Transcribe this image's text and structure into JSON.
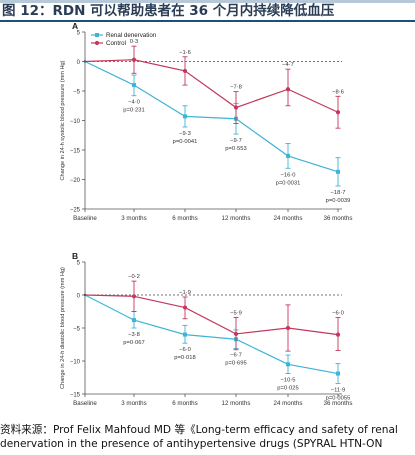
{
  "page": {
    "figure_title": "图 12：RDN 可以帮助患者在 36 个月内持续降低血压",
    "source_line1": "资料来源：Prof Felix Mahfoud MD 等《Long-term efficacy and safety of renal",
    "source_line2": "denervation in the presence of antihypertensive drugs (SPYRAL HTN-ON"
  },
  "colors": {
    "renal_denervation": "#3eb4d6",
    "control": "#c3385c",
    "axis": "#555555",
    "title_text": "#2a3d55",
    "title_rule": "#1e4e79"
  },
  "chart_data": [
    {
      "type": "line",
      "panel": "A",
      "ylabel": "Change in 24-h systolic blood pressure (mm Hg)",
      "xlabel": "",
      "categories": [
        "Baseline",
        "3 months",
        "6 months",
        "12 months",
        "24 months",
        "36 months"
      ],
      "ylim": [
        -25,
        5
      ],
      "yticks": [
        5,
        0,
        -5,
        -10,
        -15,
        -20,
        -25
      ],
      "grid": false,
      "legend": {
        "placement": "top-left",
        "entries": [
          "Renal denervation",
          "Control"
        ]
      },
      "series": [
        {
          "name": "Renal denervation",
          "values": [
            0,
            -4.0,
            -9.3,
            -9.7,
            -16.0,
            -18.7
          ],
          "err_low": [
            0,
            -5.8,
            -11.1,
            -12.3,
            -18.1,
            -21.1
          ],
          "err_high": [
            0,
            -2.3,
            -7.5,
            -7.1,
            -13.9,
            -16.3
          ],
          "labels": [
            "",
            "−4·0",
            "−9·3",
            "−9·7",
            "−16·0",
            "−18·7"
          ]
        },
        {
          "name": "Control",
          "values": [
            0,
            0.3,
            -1.6,
            -7.8,
            -4.7,
            -8.6
          ],
          "err_low": [
            0,
            -2.0,
            -4.0,
            -10.5,
            -7.5,
            -11.3
          ],
          "err_high": [
            0,
            2.6,
            0.8,
            -5.1,
            -1.3,
            -5.9
          ],
          "labels": [
            "",
            "0·3",
            "−1·6",
            "−7·8",
            "−4·7",
            "−8·6"
          ]
        }
      ],
      "p_values": [
        {
          "x": "3 months",
          "text": "p=0·231"
        },
        {
          "x": "6 months",
          "text": "p=0·0041"
        },
        {
          "x": "12 months",
          "text": "p=0·553"
        },
        {
          "x": "24 months",
          "text": "p=0·0031"
        },
        {
          "x": "36 months",
          "text": "p=0·0039"
        }
      ]
    },
    {
      "type": "line",
      "panel": "B",
      "ylabel": "Change in 24-h diastolic blood pressure (mm Hg)",
      "xlabel": "",
      "categories": [
        "Baseline",
        "3 months",
        "6 months",
        "12 months",
        "24 months",
        "36 months"
      ],
      "ylim": [
        -15,
        5
      ],
      "yticks": [
        5,
        0,
        -5,
        -10,
        -15
      ],
      "grid": false,
      "legend": null,
      "series": [
        {
          "name": "Renal denervation",
          "values": [
            0,
            -3.8,
            -6.0,
            -6.7,
            -10.5,
            -11.9
          ],
          "err_low": [
            0,
            -5.0,
            -7.3,
            -8.1,
            -11.9,
            -13.4
          ],
          "err_high": [
            0,
            -2.5,
            -4.6,
            -5.3,
            -9.1,
            -10.4
          ],
          "labels": [
            "",
            "−3·8",
            "−6·0",
            "−6·7",
            "−10·5",
            "−11·9"
          ]
        },
        {
          "name": "Control",
          "values": [
            0,
            -0.2,
            -1.9,
            -5.9,
            -5.0,
            -6.0
          ],
          "err_low": [
            0,
            -2.5,
            -3.6,
            -8.3,
            -8.5,
            -8.4
          ],
          "err_high": [
            0,
            2.1,
            -0.3,
            -3.4,
            -1.5,
            -3.4
          ],
          "labels": [
            "",
            "−0·2",
            "−1·9",
            "−5·9",
            "",
            "−6·0"
          ]
        }
      ],
      "p_values": [
        {
          "x": "3 months",
          "text": "p=0·067"
        },
        {
          "x": "6 months",
          "text": "p=0·018"
        },
        {
          "x": "12 months",
          "text": "p=0·695"
        },
        {
          "x": "24 months",
          "text": "p=0·025"
        },
        {
          "x": "36 months",
          "text": "p=0·0055"
        }
      ]
    }
  ]
}
